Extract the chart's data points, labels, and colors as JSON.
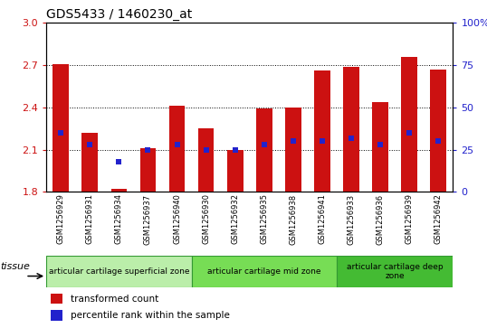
{
  "title": "GDS5433 / 1460230_at",
  "samples": [
    "GSM1256929",
    "GSM1256931",
    "GSM1256934",
    "GSM1256937",
    "GSM1256940",
    "GSM1256930",
    "GSM1256932",
    "GSM1256935",
    "GSM1256938",
    "GSM1256941",
    "GSM1256933",
    "GSM1256936",
    "GSM1256939",
    "GSM1256942"
  ],
  "transformed_count": [
    2.71,
    2.22,
    1.82,
    2.11,
    2.41,
    2.25,
    2.1,
    2.39,
    2.4,
    2.66,
    2.69,
    2.44,
    2.76,
    2.67
  ],
  "percentile_rank": [
    35,
    28,
    18,
    25,
    28,
    25,
    25,
    28,
    30,
    30,
    32,
    28,
    35,
    30
  ],
  "ylim_left": [
    1.8,
    3.0
  ],
  "ylim_right": [
    0,
    100
  ],
  "yticks_left": [
    1.8,
    2.1,
    2.4,
    2.7,
    3.0
  ],
  "yticks_right": [
    0,
    25,
    50,
    75,
    100
  ],
  "bar_color": "#cc1111",
  "dot_color": "#2222cc",
  "bar_width": 0.55,
  "groups": [
    {
      "label": "articular cartilage superficial zone",
      "n": 5,
      "color": "#bbeeaa"
    },
    {
      "label": "articular cartilage mid zone",
      "n": 5,
      "color": "#77dd55"
    },
    {
      "label": "articular cartilage deep\nzone",
      "n": 4,
      "color": "#44bb33"
    }
  ],
  "group_edge_color": "#339933",
  "tissue_label": "tissue",
  "xtick_bg_color": "#cccccc",
  "legend_red_label": "transformed count",
  "legend_blue_label": "percentile rank within the sample",
  "plot_bg": "white",
  "fig_bg": "white",
  "title_fontsize": 10,
  "axis_label_fontsize": 8,
  "xtick_fontsize": 6,
  "legend_fontsize": 7.5,
  "tissue_fontsize": 6.5,
  "tissue_label_fontsize": 8
}
